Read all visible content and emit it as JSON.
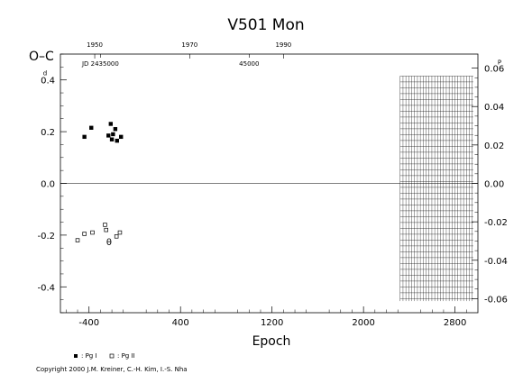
{
  "chart_data": {
    "type": "scatter",
    "title": "V501 Mon",
    "xlabel": "Epoch",
    "ylabel": "O–C",
    "ylabel_unit": "d",
    "xlim": [
      -650,
      3000
    ],
    "ylim": [
      -0.5,
      0.5
    ],
    "xticks": [
      -400,
      400,
      1200,
      2000,
      2800
    ],
    "xtick_labels": [
      "-400",
      "400",
      "1200",
      "2000",
      "2800"
    ],
    "yticks_left": [
      -0.4,
      -0.2,
      0.0,
      0.2,
      0.4
    ],
    "ytick_labels_left": [
      "-0.4",
      "-0.2",
      "0.0",
      "0.2",
      "0.4"
    ],
    "right_axis": {
      "lim": [
        -0.0673,
        0.0673
      ],
      "ticks": [
        -0.06,
        -0.04,
        -0.02,
        0.0,
        0.02,
        0.04,
        0.06
      ],
      "tick_labels": [
        "-0.06",
        "-0.04",
        "-0.02",
        "0.00",
        "0.02",
        "0.04",
        "0.06"
      ],
      "unit": "P"
    },
    "top_axis_years": {
      "ticks": [
        -350,
        480,
        1300
      ],
      "tick_labels": [
        "1950",
        "1970",
        "1990"
      ]
    },
    "top_axis_jd": {
      "ticks": [
        -300,
        1000
      ],
      "tick_labels": [
        "JD 2435000",
        "45000"
      ]
    },
    "zero_line": 0.0,
    "grid": false,
    "shaded_x_range": [
      2320,
      2960
    ],
    "series": [
      {
        "name": "Pg I",
        "marker": "filled-square",
        "x": [
          -440,
          -380,
          -230,
          -210,
          -190,
          -200,
          -170,
          -155,
          -120
        ],
        "y": [
          0.18,
          0.215,
          0.185,
          0.23,
          0.19,
          0.17,
          0.21,
          0.165,
          0.18
        ]
      },
      {
        "name": "Pg II",
        "marker": "open-square",
        "x": [
          -500,
          -440,
          -370,
          -260,
          -250,
          -160,
          -130
        ],
        "y": [
          -0.22,
          -0.195,
          -0.19,
          -0.16,
          -0.18,
          -0.205,
          -0.19
        ]
      }
    ],
    "annotations": [
      {
        "text": "θ",
        "x": -225,
        "y": -0.225
      }
    ],
    "legend": [
      {
        "marker": "filled-square",
        "label": ": Pg I"
      },
      {
        "marker": "open-square",
        "label": ": Pg II"
      }
    ]
  },
  "copyright": "Copyright 2000 J.M. Kreiner, C.-H. Kim, I.-S. Nha"
}
